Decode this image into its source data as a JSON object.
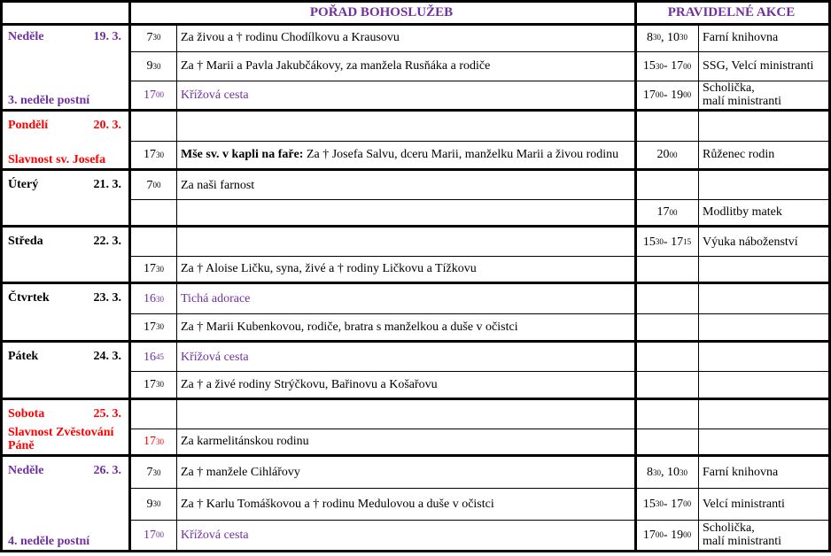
{
  "header": {
    "services_title": "POŘAD BOHOSLUŽEB",
    "events_title": "PRAVIDELNÉ AKCE"
  },
  "colors": {
    "purple": "#7030a0",
    "red": "#ff0000",
    "black": "#000000"
  },
  "days": [
    {
      "name": "Neděle",
      "date": "19. 3.",
      "feast": "3. neděle postní",
      "color": "purple",
      "rows": [
        {
          "time": {
            "h": "7",
            "m": "30"
          },
          "text": "Za živou a † rodinu Chodílkovu a Krausovu",
          "akce_time": [
            {
              "t": "8",
              "s": "30"
            },
            {
              "t": " , 10",
              "s": "30"
            }
          ],
          "akce": "Farní knihovna"
        },
        {
          "time": {
            "h": "9",
            "m": "30"
          },
          "text": "Za † Marii a Pavla Jakubčákovy, za manžela Rusňáka a rodiče",
          "akce_time": [
            {
              "t": "15",
              "s": "30"
            },
            {
              "t": " - 17",
              "s": "00"
            }
          ],
          "akce": "SSG, Velcí ministranti"
        },
        {
          "time": {
            "h": "17",
            "m": "00"
          },
          "time_color": "purple",
          "text": "Křížová cesta",
          "text_color": "purple",
          "akce_time": [
            {
              "t": "17",
              "s": "00"
            },
            {
              "t": " - 19",
              "s": "00"
            }
          ],
          "akce": "Scholička,\nmalí ministranti"
        }
      ]
    },
    {
      "name": "Pondělí",
      "date": "20. 3.",
      "feast": "Slavnost sv. Josefa",
      "color": "red",
      "rows": [
        {},
        {
          "time": {
            "h": "17",
            "m": "30"
          },
          "bold": "Mše sv. v kapli na faře:",
          "text": " Za † Josefa Salvu, dceru Marii, manželku Marii a živou rodinu",
          "akce_time": [
            {
              "t": "20",
              "s": "00"
            }
          ],
          "akce": "Růženec rodin"
        }
      ]
    },
    {
      "name": "Úterý",
      "date": "21. 3.",
      "color": "black",
      "rows": [
        {
          "time": {
            "h": "7",
            "m": "00"
          },
          "text": "Za naši farnost"
        },
        {
          "akce_time": [
            {
              "t": "17",
              "s": "00"
            }
          ],
          "akce": "Modlitby matek"
        }
      ]
    },
    {
      "name": "Středa",
      "date": "22. 3.",
      "color": "black",
      "rows": [
        {
          "akce_time": [
            {
              "t": "15",
              "s": "30"
            },
            {
              "t": " - 17",
              "s": "15"
            }
          ],
          "akce": "Výuka náboženství"
        },
        {
          "time": {
            "h": "17",
            "m": "30"
          },
          "text": "Za † Aloise Ličku, syna, živé a † rodiny Ličkovu a Tížkovu"
        }
      ]
    },
    {
      "name": "Čtvrtek",
      "date": "23. 3.",
      "color": "black",
      "rows": [
        {
          "time": {
            "h": "16",
            "m": "30"
          },
          "time_color": "purple",
          "text": "Tichá adorace",
          "text_color": "purple"
        },
        {
          "time": {
            "h": "17",
            "m": "30"
          },
          "text": "Za † Marii Kubenkovou, rodiče, bratra s manželkou a duše v očistci"
        }
      ]
    },
    {
      "name": "Pátek",
      "date": "24. 3.",
      "color": "black",
      "rows": [
        {
          "time": {
            "h": "16",
            "m": "45"
          },
          "time_color": "purple",
          "text": "Křížová cesta",
          "text_color": "purple"
        },
        {
          "time": {
            "h": "17",
            "m": "30"
          },
          "text": "Za † a živé rodiny Strýčkovu, Bařinovu a Košařovu"
        }
      ]
    },
    {
      "name": "Sobota",
      "date": "25. 3.",
      "feast": "Slavnost Zvěstování Páně",
      "color": "red",
      "rows": [
        {},
        {
          "time": {
            "h": "17",
            "m": "30"
          },
          "time_color": "red",
          "text": "Za karmelitánskou rodinu"
        }
      ]
    },
    {
      "name": "Neděle",
      "date": "26. 3.",
      "feast": "4. neděle postní",
      "color": "purple",
      "rows": [
        {
          "time": {
            "h": "7",
            "m": "30"
          },
          "text": "Za † manžele Cihlářovy",
          "akce_time": [
            {
              "t": "8",
              "s": "30"
            },
            {
              "t": " , 10",
              "s": "30"
            }
          ],
          "akce": "Farní knihovna"
        },
        {
          "time": {
            "h": "9",
            "m": "30"
          },
          "text": "Za † Karlu Tomáškovou a † rodinu Medulovou a duše v očistci",
          "akce_time": [
            {
              "t": "15",
              "s": "30"
            },
            {
              "t": "- 17",
              "s": "00"
            }
          ],
          "akce": "Velcí ministranti"
        },
        {
          "time": {
            "h": "17",
            "m": "00"
          },
          "time_color": "purple",
          "text": "Křížová cesta",
          "text_color": "purple",
          "akce_time": [
            {
              "t": "17",
              "s": "00"
            },
            {
              "t": " - 19",
              "s": "00"
            }
          ],
          "akce": "Scholička,\nmalí ministranti"
        }
      ]
    }
  ]
}
